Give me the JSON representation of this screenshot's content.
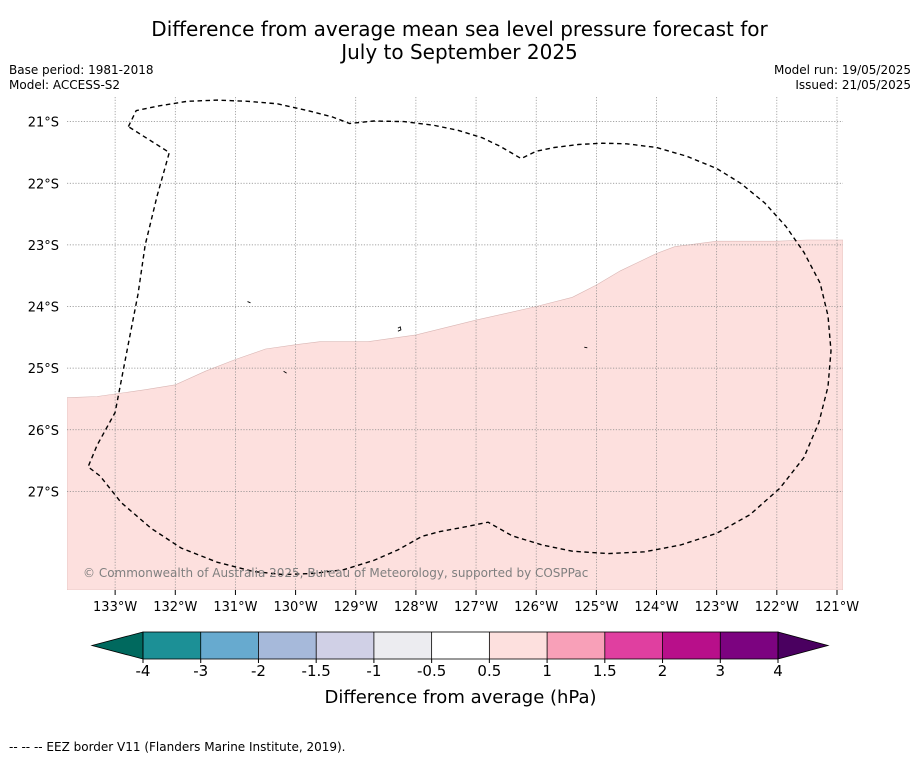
{
  "title_line1": "Difference from average mean sea level pressure forecast for",
  "title_line2": "July to September 2025",
  "base_period": "Base period: 1981-2018",
  "model": "Model: ACCESS-S2",
  "model_run": "Model run: 19/05/2025",
  "issued": "Issued: 21/05/2025",
  "map": {
    "lon_range": [
      -133.8,
      -120.9
    ],
    "lat_range": [
      -28.6,
      -20.6
    ],
    "lon_ticks": [
      -133,
      -132,
      -131,
      -130,
      -129,
      -128,
      -127,
      -126,
      -125,
      -124,
      -123,
      -122,
      -121
    ],
    "lon_tick_labels": [
      "133°W",
      "132°W",
      "131°W",
      "130°W",
      "129°W",
      "128°W",
      "127°W",
      "126°W",
      "125°W",
      "124°W",
      "123°W",
      "122°W",
      "121°W"
    ],
    "lat_ticks": [
      -21,
      -22,
      -23,
      -24,
      -25,
      -26,
      -27
    ],
    "lat_tick_labels": [
      "21°S",
      "22°S",
      "23°S",
      "24°S",
      "25°S",
      "26°S",
      "27°S"
    ],
    "gridlines": true,
    "background_color": "#ffffff",
    "fill_color": "#fde0de",
    "filled_category": "0.5 to 1",
    "category_boundary": [
      [
        -133.8,
        -25.48
      ],
      [
        -133.3,
        -25.46
      ],
      [
        -132.5,
        -25.35
      ],
      [
        -132.0,
        -25.27
      ],
      [
        -131.5,
        -25.05
      ],
      [
        -131.0,
        -24.86
      ],
      [
        -130.5,
        -24.69
      ],
      [
        -130.0,
        -24.62
      ],
      [
        -129.6,
        -24.57
      ],
      [
        -128.8,
        -24.57
      ],
      [
        -128.0,
        -24.46
      ],
      [
        -127.0,
        -24.22
      ],
      [
        -126.0,
        -24.0
      ],
      [
        -125.4,
        -23.85
      ],
      [
        -125.0,
        -23.65
      ],
      [
        -124.6,
        -23.42
      ],
      [
        -124.0,
        -23.14
      ],
      [
        -123.7,
        -23.03
      ],
      [
        -123.0,
        -22.94
      ],
      [
        -122.0,
        -22.94
      ],
      [
        -121.5,
        -22.92
      ],
      [
        -120.9,
        -22.92
      ]
    ],
    "eez_border": [
      [
        -132.78,
        -21.08
      ],
      [
        -132.65,
        -20.82
      ],
      [
        -132.3,
        -20.75
      ],
      [
        -131.8,
        -20.67
      ],
      [
        -131.3,
        -20.65
      ],
      [
        -130.8,
        -20.67
      ],
      [
        -130.3,
        -20.71
      ],
      [
        -129.8,
        -20.82
      ],
      [
        -129.4,
        -20.92
      ],
      [
        -129.1,
        -21.03
      ],
      [
        -128.7,
        -20.99
      ],
      [
        -128.2,
        -21.0
      ],
      [
        -127.7,
        -21.06
      ],
      [
        -127.3,
        -21.14
      ],
      [
        -126.9,
        -21.26
      ],
      [
        -126.6,
        -21.4
      ],
      [
        -126.25,
        -21.6
      ],
      [
        -126.0,
        -21.48
      ],
      [
        -125.7,
        -21.42
      ],
      [
        -125.3,
        -21.37
      ],
      [
        -124.9,
        -21.35
      ],
      [
        -124.5,
        -21.36
      ],
      [
        -124.0,
        -21.42
      ],
      [
        -123.5,
        -21.56
      ],
      [
        -123.0,
        -21.76
      ],
      [
        -122.6,
        -22.0
      ],
      [
        -122.2,
        -22.32
      ],
      [
        -121.85,
        -22.7
      ],
      [
        -121.55,
        -23.12
      ],
      [
        -121.28,
        -23.62
      ],
      [
        -121.15,
        -24.15
      ],
      [
        -121.1,
        -24.72
      ],
      [
        -121.15,
        -25.3
      ],
      [
        -121.3,
        -25.88
      ],
      [
        -121.55,
        -26.45
      ],
      [
        -121.95,
        -26.95
      ],
      [
        -122.45,
        -27.38
      ],
      [
        -123.0,
        -27.68
      ],
      [
        -123.6,
        -27.87
      ],
      [
        -124.2,
        -27.98
      ],
      [
        -124.8,
        -28.01
      ],
      [
        -125.4,
        -27.97
      ],
      [
        -125.9,
        -27.87
      ],
      [
        -126.4,
        -27.72
      ],
      [
        -126.8,
        -27.5
      ],
      [
        -127.2,
        -27.58
      ],
      [
        -127.6,
        -27.65
      ],
      [
        -127.9,
        -27.73
      ],
      [
        -128.3,
        -27.95
      ],
      [
        -128.7,
        -28.12
      ],
      [
        -129.2,
        -28.27
      ],
      [
        -129.7,
        -28.33
      ],
      [
        -130.2,
        -28.35
      ],
      [
        -130.7,
        -28.3
      ],
      [
        -131.3,
        -28.15
      ],
      [
        -131.9,
        -27.92
      ],
      [
        -132.4,
        -27.6
      ],
      [
        -132.9,
        -27.18
      ],
      [
        -133.25,
        -26.75
      ],
      [
        -133.45,
        -26.6
      ],
      [
        -133.3,
        -26.25
      ],
      [
        -133.0,
        -25.72
      ],
      [
        -132.78,
        -24.6
      ],
      [
        -132.62,
        -23.8
      ],
      [
        -132.5,
        -23.0
      ],
      [
        -132.3,
        -22.2
      ],
      [
        -132.1,
        -21.5
      ],
      [
        -132.78,
        -21.08
      ]
    ],
    "eez_enclaves": [
      [
        [
          -128.3,
          -24.35
        ],
        [
          -128.26,
          -24.33
        ],
        [
          -128.25,
          -24.38
        ],
        [
          -128.3,
          -24.4
        ]
      ],
      [
        [
          -130.8,
          -23.92
        ],
        [
          -130.75,
          -23.94
        ]
      ],
      [
        [
          -130.2,
          -25.05
        ],
        [
          -130.15,
          -25.08
        ]
      ],
      [
        [
          -125.2,
          -24.66
        ],
        [
          -125.15,
          -24.67
        ]
      ]
    ],
    "copyright": "© Commonwealth of Australia 2025, Bureau of Meteorology, supported by COSPPac"
  },
  "colorbar": {
    "label": "Difference from average (hPa)",
    "ticks": [
      "-4",
      "-3",
      "-2",
      "-1.5",
      "-1",
      "-0.5",
      "0.5",
      "1",
      "1.5",
      "2",
      "3",
      "4"
    ],
    "under_color": "#00695e",
    "over_color": "#4a0060",
    "colors": [
      "#1c9096",
      "#67aacf",
      "#a6b9da",
      "#d0d0e6",
      "#ececf0",
      "#ffffff",
      "#fde0de",
      "#f8a0b8",
      "#e03fa0",
      "#b80f8a",
      "#7c0380"
    ]
  },
  "legend_note": "--  --  -- EEZ border V11 (Flanders Marine Institute, 2019)."
}
